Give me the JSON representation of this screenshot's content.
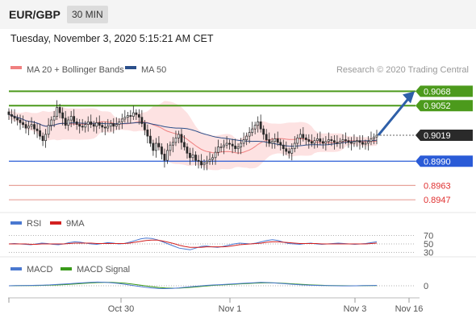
{
  "header": {
    "pair": "EUR/GBP",
    "timeframe": "30 MIN"
  },
  "timestamp": "Tuesday, November 3, 2020 5:15:21 AM CET",
  "credit": "Research © 2020 Trading Central",
  "colors": {
    "ma20": "#f08080",
    "ma50": "#2b4f8a",
    "bollinger_fill": "#fde2e2",
    "candle": "#2a2a2a",
    "resistance": "#4c9a1c",
    "pivot": "#2a5bd7",
    "support_lines": "#e8a29a",
    "support_text": "#e03030",
    "current_tag": "#2a2a2a",
    "arrow": "#2e5fa8",
    "rsi": "#4a78d0",
    "rsi_ma": "#d22020",
    "macd": "#4a78d0",
    "macd_signal": "#3a9a1a"
  },
  "chart_data": [
    {
      "type": "candlestick",
      "title": "EUR/GBP",
      "legend": [
        {
          "name": "MA 20 + Bollinger Bands",
          "color": "#f08080"
        },
        {
          "name": "MA 50",
          "color": "#2b4f8a"
        }
      ],
      "legend_placement": "top-left",
      "x_tick_labels": [
        "Oct 30",
        "Nov 1",
        "Nov 3",
        "Nov 16"
      ],
      "y_range": [
        0.894,
        0.908
      ],
      "levels": [
        {
          "value": 0.9068,
          "label": "0.9068",
          "kind": "resistance"
        },
        {
          "value": 0.9052,
          "label": "0.9052",
          "kind": "resistance"
        },
        {
          "value": 0.9019,
          "label": "0.9019",
          "kind": "current"
        },
        {
          "value": 0.899,
          "label": "0.8990",
          "kind": "pivot"
        },
        {
          "value": 0.8963,
          "label": "0.8963",
          "kind": "support"
        },
        {
          "value": 0.8947,
          "label": "0.8947",
          "kind": "support"
        }
      ],
      "close_series": [
        0.9042,
        0.904,
        0.9038,
        0.9036,
        0.9033,
        0.9031,
        0.9027,
        0.9029,
        0.9031,
        0.9026,
        0.9024,
        0.9018,
        0.9013,
        0.902,
        0.903,
        0.9036,
        0.904,
        0.905,
        0.9044,
        0.9038,
        0.903,
        0.9036,
        0.904,
        0.9034,
        0.9031,
        0.9029,
        0.9028,
        0.9031,
        0.9034,
        0.9031,
        0.9029,
        0.9033,
        0.903,
        0.9028,
        0.9027,
        0.9029,
        0.9032,
        0.9029,
        0.9031,
        0.9034,
        0.9037,
        0.9039,
        0.9041,
        0.904,
        0.9044,
        0.9042,
        0.9039,
        0.9032,
        0.9025,
        0.9018,
        0.901,
        0.9002,
        0.901,
        0.9006,
        0.8998,
        0.8991,
        0.9002,
        0.9008,
        0.9011,
        0.9016,
        0.902,
        0.9011,
        0.9006,
        0.8999,
        0.8994,
        0.8997,
        0.8991,
        0.899,
        0.8986,
        0.8988,
        0.899,
        0.8992,
        0.8994,
        0.9,
        0.9006,
        0.9006,
        0.9008,
        0.901,
        0.9009,
        0.9007,
        0.9004,
        0.9006,
        0.901,
        0.9014,
        0.9018,
        0.9022,
        0.9026,
        0.903,
        0.9034,
        0.9026,
        0.902,
        0.9014,
        0.901,
        0.9012,
        0.9015,
        0.9011,
        0.9008,
        0.9004,
        0.9001,
        0.8999,
        0.9004,
        0.901,
        0.9016,
        0.902,
        0.9016,
        0.9014,
        0.9012,
        0.901,
        0.9013,
        0.9015,
        0.9012,
        0.901,
        0.9012,
        0.9014,
        0.9013,
        0.9011,
        0.901,
        0.9012,
        0.9014,
        0.9013,
        0.9011,
        0.901,
        0.9012,
        0.9013,
        0.9011,
        0.9009,
        0.901,
        0.9012,
        0.9015,
        0.9017,
        0.9019
      ],
      "forecast_arrow": {
        "from": 0.9019,
        "to": 0.9068
      }
    },
    {
      "type": "line",
      "legend": [
        {
          "name": "RSI",
          "color": "#4a78d0"
        },
        {
          "name": "9MA",
          "color": "#d22020"
        }
      ],
      "y_range": [
        25,
        75
      ],
      "levels": [
        70,
        50,
        30
      ],
      "level_labels": [
        "70",
        "50",
        "30"
      ],
      "series": [
        {
          "name": "RSI",
          "values": [
            50,
            51,
            50,
            49,
            48,
            50,
            52,
            51,
            49,
            48,
            50,
            53,
            55,
            54,
            52,
            50,
            49,
            51,
            53,
            52,
            50,
            51,
            54,
            58,
            62,
            64,
            63,
            60,
            55,
            50,
            45,
            40,
            38,
            36,
            40,
            44,
            45,
            43,
            42,
            44,
            47,
            50,
            52,
            51,
            50,
            52,
            55,
            58,
            60,
            58,
            54,
            51,
            50,
            49,
            51,
            52,
            50,
            49,
            50,
            51,
            52,
            51,
            50,
            49,
            50,
            51,
            53,
            55
          ]
        },
        {
          "name": "9MA",
          "values": [
            50,
            50,
            50,
            50,
            49,
            49,
            50,
            50,
            50,
            50,
            50,
            51,
            52,
            52,
            52,
            52,
            51,
            51,
            51,
            51,
            51,
            51,
            52,
            54,
            56,
            58,
            59,
            59,
            57,
            54,
            51,
            47,
            44,
            42,
            42,
            42,
            43,
            43,
            43,
            43,
            44,
            46,
            48,
            49,
            50,
            51,
            52,
            54,
            55,
            55,
            54,
            53,
            52,
            51,
            51,
            51,
            51,
            50,
            50,
            50,
            50,
            50,
            50,
            50,
            50,
            50,
            51,
            52
          ]
        }
      ]
    },
    {
      "type": "line",
      "legend": [
        {
          "name": "MACD",
          "color": "#4a78d0"
        },
        {
          "name": "MACD Signal",
          "color": "#3a9a1a"
        }
      ],
      "zero_label": "0",
      "y_range": [
        -1,
        1
      ],
      "series": [
        {
          "name": "MACD",
          "values": [
            0.0,
            0.02,
            0.03,
            0.05,
            0.07,
            0.1,
            0.14,
            0.2,
            0.26,
            0.33,
            0.4,
            0.48,
            0.54,
            0.58,
            0.55,
            0.48,
            0.38,
            0.24,
            0.08,
            -0.08,
            -0.22,
            -0.34,
            -0.42,
            -0.44,
            -0.4,
            -0.32,
            -0.22,
            -0.12,
            -0.02,
            0.06,
            0.12,
            0.18,
            0.24,
            0.3,
            0.36,
            0.42,
            0.48,
            0.52,
            0.5,
            0.44,
            0.36,
            0.28,
            0.2,
            0.14,
            0.1,
            0.06,
            0.04,
            0.02,
            0.0,
            -0.01,
            -0.01,
            0.0,
            0.02,
            0.04,
            0.06
          ]
        },
        {
          "name": "MACD Signal",
          "values": [
            0.0,
            0.01,
            0.02,
            0.03,
            0.04,
            0.06,
            0.09,
            0.13,
            0.18,
            0.24,
            0.3,
            0.37,
            0.44,
            0.5,
            0.53,
            0.52,
            0.48,
            0.4,
            0.28,
            0.14,
            0.0,
            -0.14,
            -0.26,
            -0.34,
            -0.38,
            -0.36,
            -0.3,
            -0.22,
            -0.12,
            -0.02,
            0.06,
            0.12,
            0.18,
            0.24,
            0.3,
            0.35,
            0.4,
            0.44,
            0.46,
            0.45,
            0.41,
            0.35,
            0.28,
            0.22,
            0.16,
            0.11,
            0.07,
            0.04,
            0.02,
            0.01,
            0.0,
            0.0,
            0.01,
            0.02,
            0.04
          ]
        }
      ]
    }
  ]
}
